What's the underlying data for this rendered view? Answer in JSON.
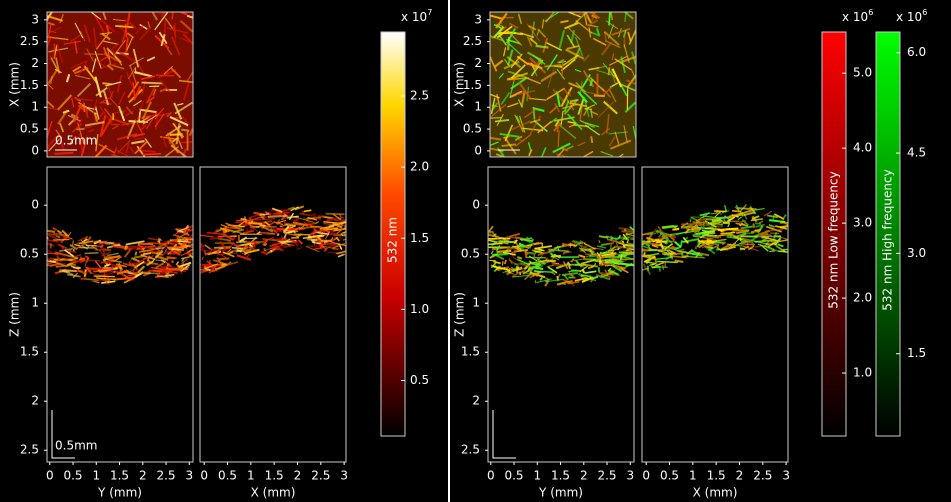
{
  "left": {
    "xy": {
      "y_label": "X (mm)",
      "ylim": [
        -0.14,
        3.18
      ],
      "yticks": [
        0,
        0.5,
        1,
        1.5,
        2,
        2.5,
        3
      ],
      "scale_bar": "0.5mm"
    },
    "yz": {
      "y_label": "Z (mm)",
      "ylim": [
        2.62,
        -0.39
      ],
      "yticks": [
        0,
        0.5,
        1,
        1.5,
        2,
        2.5
      ],
      "x_label": "Y (mm)",
      "xlim": [
        -0.06,
        3.08
      ],
      "xticks": [
        0,
        0.5,
        1,
        1.5,
        2,
        2.5,
        3
      ],
      "scale_bar": "0.5mm"
    },
    "xz": {
      "x_label": "X (mm)",
      "xlim": [
        -0.09,
        3.04
      ],
      "xticks": [
        0,
        0.5,
        1,
        1.5,
        2,
        2.5,
        3
      ]
    },
    "colorbars": [
      {
        "label": "532 nm",
        "multiplier": {
          "text": "x 10",
          "exponent": 7
        },
        "lim": [
          0.11,
          2.95
        ],
        "ticks": [
          0.5,
          {
            "value": 1,
            "label": "1.0"
          },
          1.5,
          {
            "value": 2,
            "label": "2.0"
          },
          2.5
        ]
      }
    ]
  },
  "right": {
    "xy": {
      "y_label": "X (mm)",
      "ylim": [
        -0.14,
        3.18
      ],
      "yticks": [
        0,
        0.5,
        1,
        1.5,
        2,
        2.5,
        3
      ]
    },
    "yz": {
      "y_label": "Z (mm)",
      "ylim": [
        2.62,
        -0.39
      ],
      "yticks": [
        0,
        0.5,
        1,
        1.5,
        2,
        2.5
      ],
      "x_label": "Y (mm)",
      "xlim": [
        -0.06,
        3.08
      ],
      "xticks": [
        0,
        0.5,
        1,
        1.5,
        2,
        2.5,
        3
      ]
    },
    "xz": {
      "x_label": "X (mm)",
      "xlim": [
        -0.09,
        3.04
      ],
      "xticks": [
        0,
        0.5,
        1,
        1.5,
        2,
        2.5,
        3
      ]
    },
    "colorbars": [
      {
        "label": "532 nm Low frequency",
        "multiplier": {
          "text": "x 10",
          "exponent": 6
        },
        "lim": [
          0.16,
          5.55
        ],
        "ticks": [
          {
            "value": 1,
            "label": "1.0"
          },
          {
            "value": 2,
            "label": "2.0"
          },
          {
            "value": 3,
            "label": "3.0"
          },
          {
            "value": 4,
            "label": "4.0"
          },
          {
            "value": 5,
            "label": "5.0"
          }
        ]
      },
      {
        "label": "532 nm High frequency",
        "multiplier": {
          "text": "x 10",
          "exponent": 6
        },
        "lim": [
          0.27,
          6.31
        ],
        "ticks": [
          1.5,
          {
            "value": 3,
            "label": "3.0"
          },
          4.5,
          {
            "value": 6,
            "label": "6.0"
          }
        ]
      }
    ]
  }
}
